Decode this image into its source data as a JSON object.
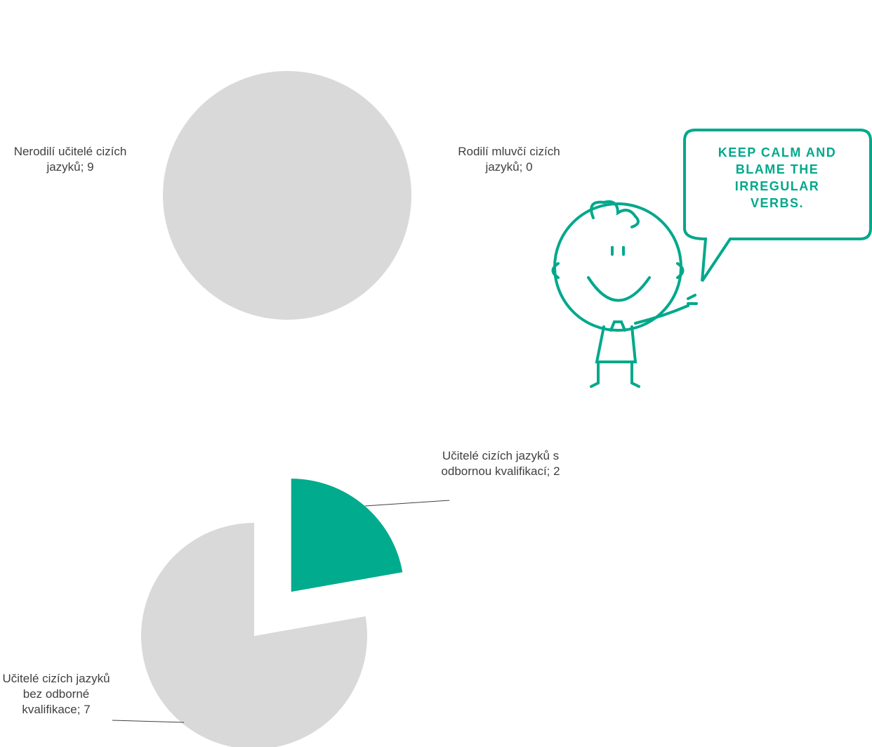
{
  "chart_data": [
    {
      "type": "pie",
      "categories": [
        "Rodilí mluvčí cizích jazyků",
        "Nerodilí učitelé cizích jazyků"
      ],
      "values": [
        0,
        9
      ],
      "value_labels": [
        "Rodilí mluvčí cizích jazyků; 0",
        "Nerodilí učitelé cizích jazyků; 9"
      ],
      "colors": [
        "#00ab8e",
        "#d9d9d9"
      ],
      "legend": "top"
    },
    {
      "type": "pie",
      "categories": [
        "Učitelé cizích jazyků s odbornou kvalifikací",
        "Učitelé cizích jazyků bez odborné kvalifikace"
      ],
      "values": [
        2,
        7
      ],
      "value_labels": [
        "Učitelé cizích jazyků s odbornou kvalifikací; 2",
        "Učitelé cizích jazyků bez odborné kvalifikace; 7"
      ],
      "colors": [
        "#00ab8e",
        "#d9d9d9"
      ],
      "legend": "top"
    }
  ],
  "illustration": {
    "speech_bubble": [
      "KEEP CALM AND",
      "BLAME THE",
      "IRREGULAR",
      "VERBS."
    ]
  }
}
